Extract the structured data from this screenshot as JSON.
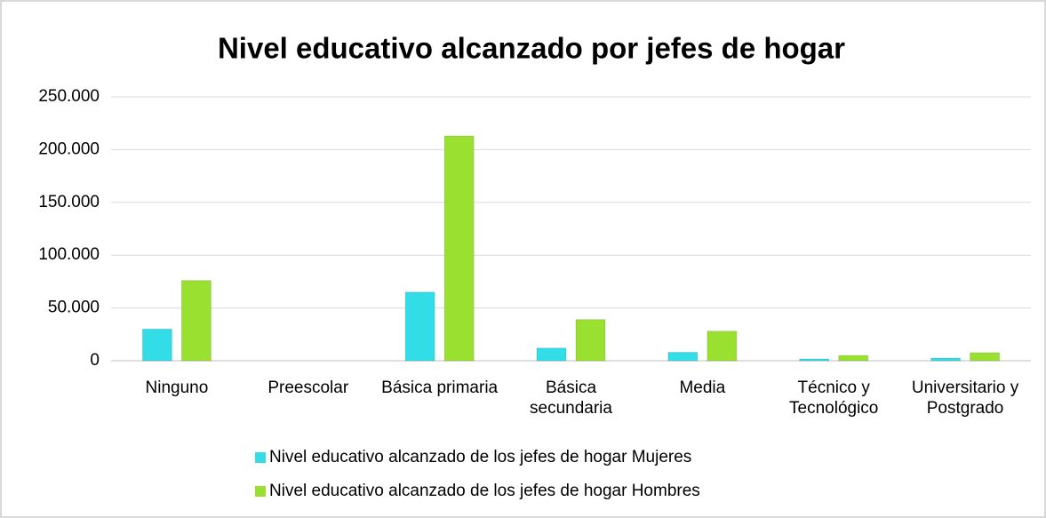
{
  "chart_data": {
    "type": "bar",
    "title": "Nivel educativo alcanzado por jefes de hogar",
    "categories": [
      "Ninguno",
      "Preescolar",
      "Básica primaria",
      "Básica secundaria",
      "Media",
      "Técnico y Tecnológico",
      "Universitario y Postgrado"
    ],
    "series": [
      {
        "name": "Nivel educativo alcanzado de los jefes de hogar Mujeres",
        "color": "#33dde8",
        "values": [
          30000,
          0,
          65000,
          12000,
          8000,
          1700,
          2500
        ]
      },
      {
        "name": "Nivel educativo alcanzado de los jefes de hogar Hombres",
        "color": "#99e030",
        "values": [
          76000,
          0,
          213000,
          39000,
          28000,
          5000,
          7600
        ]
      }
    ],
    "ylim": [
      0,
      250000
    ],
    "yticks": [
      0,
      {
        "value": 50000,
        "label": "50.000"
      },
      {
        "value": 100000,
        "label": "100.000"
      },
      {
        "value": 150000,
        "label": "150.000"
      },
      {
        "value": 200000,
        "label": "200.000"
      },
      {
        "value": 250000,
        "label": "250.000"
      }
    ],
    "grid": true,
    "legend": "bottom"
  }
}
